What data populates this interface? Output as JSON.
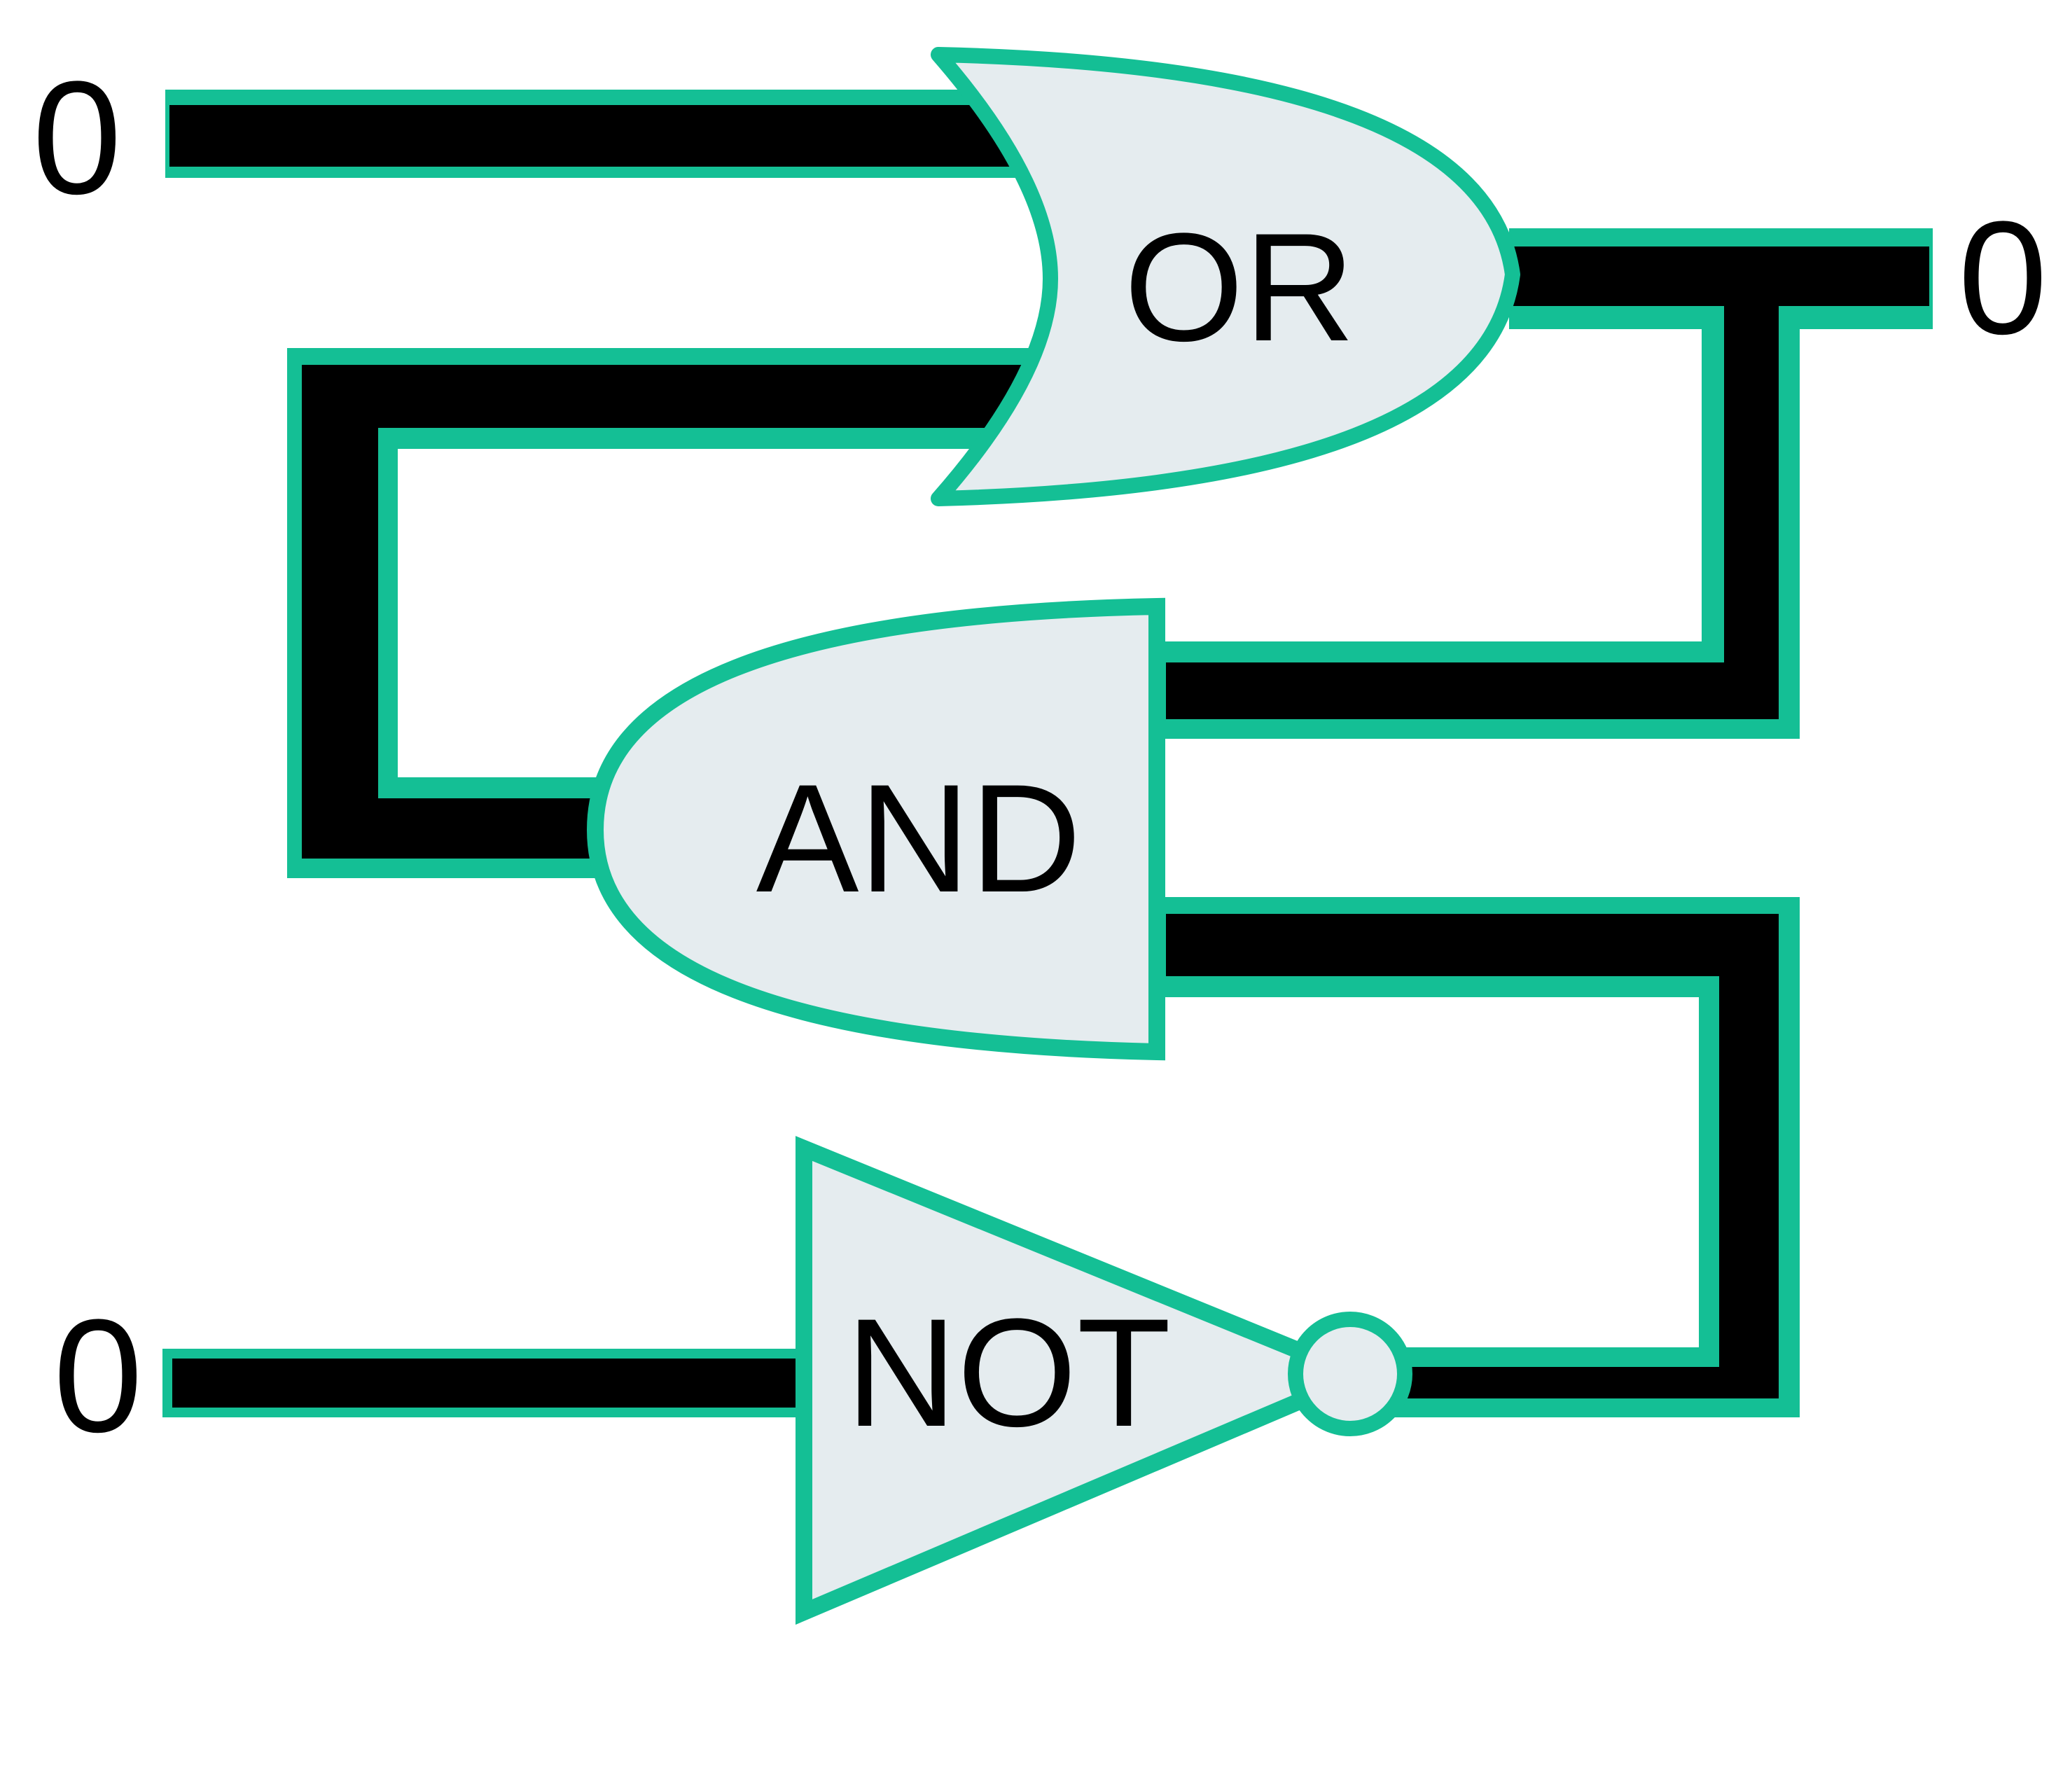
{
  "inputs": {
    "top_value": "0",
    "bottom_value": "0"
  },
  "output": {
    "value": "0"
  },
  "gates": {
    "or_label": "OR",
    "and_label": "AND",
    "not_label": "NOT"
  },
  "colors": {
    "wire_fill": "#000000",
    "outline": "#14BF95",
    "gate_fill": "#E5ECEF",
    "background": "#FFFFFF"
  }
}
